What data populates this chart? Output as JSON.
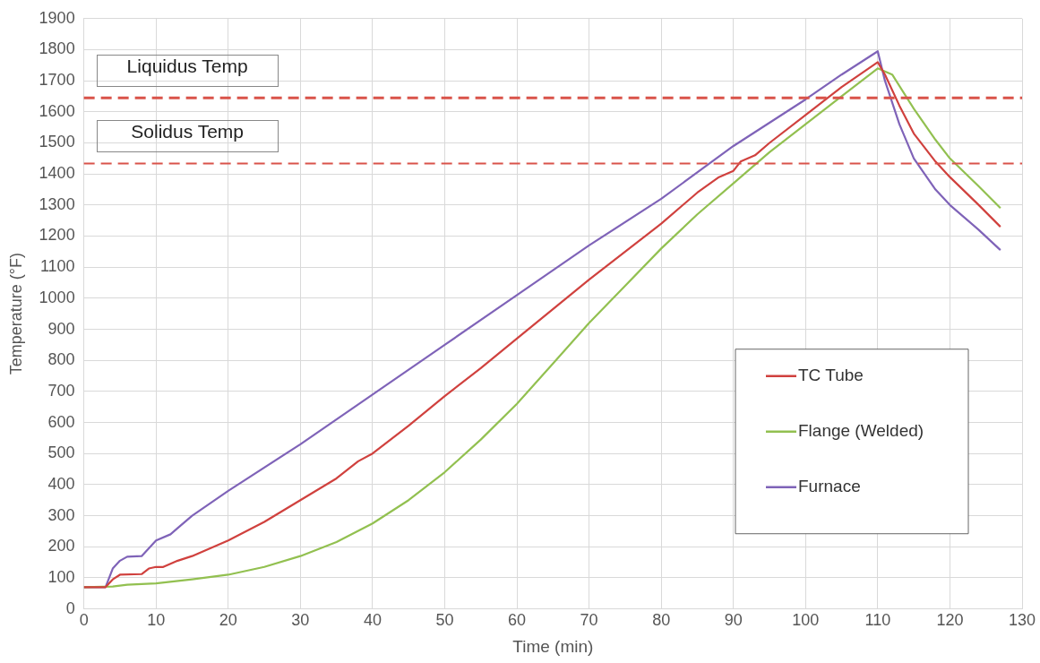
{
  "chart_data": {
    "type": "line",
    "xlabel": "Time (min)",
    "ylabel": "Temperature (°F)",
    "xlim": [
      0,
      130
    ],
    "xticks": [
      0,
      10,
      20,
      30,
      40,
      50,
      60,
      70,
      80,
      90,
      100,
      110,
      120,
      130
    ],
    "ylim": [
      0,
      1900
    ],
    "yticks": [
      0,
      100,
      200,
      300,
      400,
      500,
      600,
      700,
      800,
      900,
      1000,
      1100,
      1200,
      1300,
      1400,
      1500,
      1600,
      1700,
      1800,
      1900
    ],
    "grid": true,
    "legend": "right",
    "marker": "none",
    "line_style": "solid",
    "ref_lines": [
      {
        "axis": "y",
        "value": 1645,
        "label": "Liquidus Temp",
        "color": "#d9534a",
        "line_style": "dashed"
      },
      {
        "axis": "y",
        "value": 1434,
        "label": "Solidus Temp",
        "color": "#d9534a",
        "line_style": "dashed"
      }
    ],
    "series": [
      {
        "name": "TC Tube",
        "color": "#d0413e",
        "x": [
          0,
          3,
          4,
          5,
          8,
          9,
          10,
          11,
          13,
          15,
          20,
          25,
          30,
          35,
          38,
          40,
          45,
          50,
          55,
          60,
          70,
          80,
          85,
          88,
          90,
          91,
          93,
          95,
          100,
          105,
          110,
          111,
          113,
          115,
          118,
          120,
          124,
          127
        ],
        "values": [
          70,
          70,
          95,
          110,
          112,
          130,
          135,
          135,
          155,
          170,
          220,
          280,
          350,
          420,
          475,
          500,
          590,
          685,
          775,
          870,
          1060,
          1240,
          1340,
          1390,
          1410,
          1440,
          1460,
          1500,
          1590,
          1680,
          1760,
          1720,
          1620,
          1530,
          1440,
          1390,
          1300,
          1230
        ]
      },
      {
        "name": "Flange (Welded)",
        "color": "#92c050",
        "x": [
          0,
          4,
          6,
          10,
          15,
          20,
          25,
          30,
          35,
          40,
          45,
          50,
          55,
          60,
          65,
          70,
          75,
          80,
          85,
          90,
          95,
          100,
          105,
          110,
          112,
          115,
          118,
          120,
          124,
          127
        ],
        "values": [
          70,
          72,
          78,
          82,
          95,
          110,
          135,
          170,
          215,
          275,
          350,
          440,
          545,
          660,
          790,
          920,
          1040,
          1160,
          1270,
          1370,
          1470,
          1560,
          1650,
          1740,
          1720,
          1610,
          1510,
          1450,
          1360,
          1290
        ]
      },
      {
        "name": "Furnace",
        "color": "#7f63b8",
        "x": [
          0,
          3,
          4,
          5,
          6,
          8,
          9,
          10,
          12,
          13,
          15,
          20,
          30,
          40,
          50,
          60,
          70,
          80,
          90,
          100,
          105,
          110,
          111,
          113,
          115,
          118,
          120,
          124,
          127
        ],
        "values": [
          70,
          70,
          130,
          155,
          168,
          170,
          195,
          220,
          240,
          260,
          300,
          380,
          530,
          690,
          850,
          1010,
          1170,
          1320,
          1490,
          1640,
          1720,
          1795,
          1700,
          1560,
          1450,
          1350,
          1300,
          1220,
          1155
        ]
      }
    ]
  }
}
